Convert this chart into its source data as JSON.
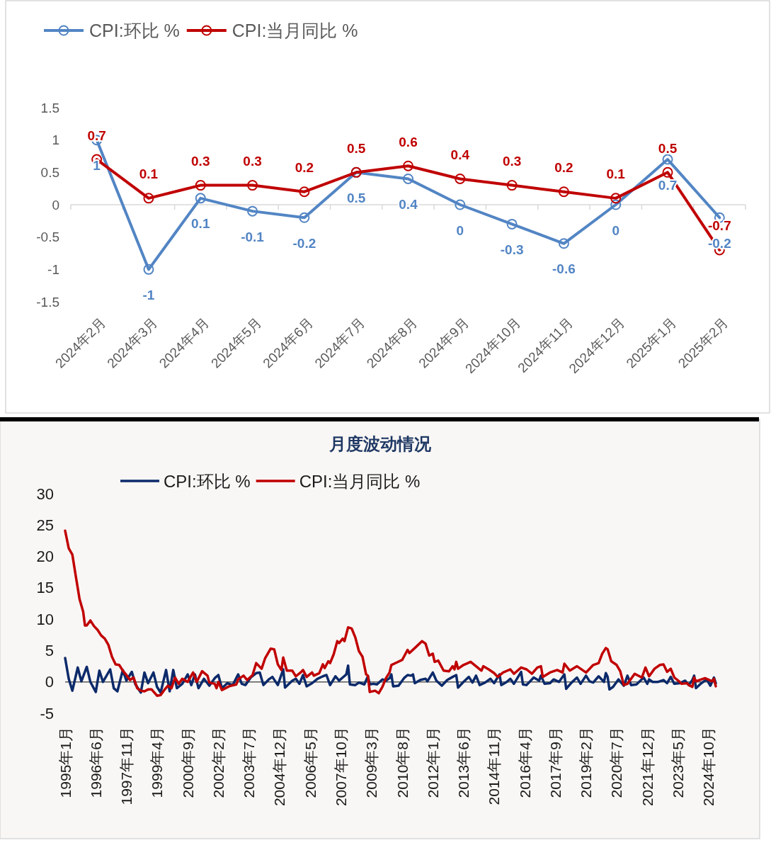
{
  "chart_data": [
    {
      "type": "line",
      "categories": [
        "2024年2月",
        "2024年3月",
        "2024年4月",
        "2024年5月",
        "2024年6月",
        "2024年7月",
        "2024年8月",
        "2024年9月",
        "2024年10月",
        "2024年11月",
        "2024年12月",
        "2025年1月",
        "2025年2月"
      ],
      "series": [
        {
          "name": "CPI:环比 %",
          "color": "#5285c4",
          "values": [
            1,
            -1,
            0.1,
            -0.1,
            -0.2,
            0.5,
            0.4,
            0,
            -0.3,
            -0.6,
            0,
            0.7,
            -0.2
          ]
        },
        {
          "name": "CPI:当月同比 %",
          "color": "#c00000",
          "values": [
            0.7,
            0.1,
            0.3,
            0.3,
            0.2,
            0.5,
            0.6,
            0.4,
            0.3,
            0.2,
            0.1,
            0.5,
            -0.7
          ]
        }
      ],
      "ylim": [
        -1.5,
        1.5
      ],
      "yticks": [
        -1.5,
        -1,
        -0.5,
        0,
        0.5,
        1,
        1.5
      ],
      "data_labels": true,
      "marker": "circle",
      "legend": "top left"
    },
    {
      "type": "line",
      "title": "月度波动情况",
      "series": [
        {
          "name": "CPI:环比 %",
          "color": "#0c2a6a",
          "x": [
            "1995-01",
            "1995-03",
            "1995-05",
            "1995-08",
            "1995-10",
            "1996-01",
            "1996-03",
            "1996-06",
            "1996-08",
            "1996-10",
            "1997-02",
            "1997-04",
            "1997-06",
            "1997-09",
            "1997-11",
            "1998-02",
            "1998-04",
            "1998-07",
            "1998-09",
            "1998-11",
            "1999-02",
            "1999-04",
            "1999-06",
            "1999-09",
            "1999-11",
            "2000-01",
            "2000-03",
            "2000-06",
            "2000-09",
            "2000-11",
            "2001-01",
            "2001-03",
            "2001-06",
            "2001-09",
            "2001-12",
            "2002-02",
            "2002-04",
            "2002-07",
            "2002-10",
            "2003-01",
            "2003-03",
            "2003-05",
            "2003-08",
            "2003-11",
            "2004-01",
            "2004-03",
            "2004-06",
            "2004-08",
            "2004-11",
            "2005-02",
            "2005-03",
            "2005-07",
            "2005-09",
            "2005-11",
            "2006-01",
            "2006-03",
            "2006-06",
            "2006-09",
            "2006-12",
            "2007-02",
            "2007-04",
            "2007-07",
            "2007-09",
            "2007-11",
            "2008-01",
            "2008-02",
            "2008-03",
            "2008-06",
            "2008-08",
            "2008-11",
            "2009-01",
            "2009-02",
            "2009-04",
            "2009-06",
            "2009-09",
            "2009-11",
            "2010-01",
            "2010-02",
            "2010-03",
            "2010-06",
            "2010-09",
            "2010-11",
            "2011-01",
            "2011-02",
            "2011-03",
            "2011-06",
            "2011-09",
            "2011-10",
            "2012-01",
            "2012-03",
            "2012-06",
            "2012-09",
            "2012-12",
            "2013-02",
            "2013-03",
            "2013-06",
            "2013-09",
            "2013-11",
            "2014-01",
            "2014-03",
            "2014-06",
            "2014-09",
            "2014-11",
            "2015-02",
            "2015-03",
            "2015-06",
            "2015-08",
            "2015-10",
            "2016-02",
            "2016-03",
            "2016-05",
            "2016-09",
            "2016-12",
            "2017-01",
            "2017-03",
            "2017-06",
            "2017-08",
            "2017-11",
            "2018-02",
            "2018-03",
            "2018-06",
            "2018-09",
            "2018-11",
            "2019-02",
            "2019-04",
            "2019-06",
            "2019-09",
            "2019-12",
            "2020-01",
            "2020-02",
            "2020-03",
            "2020-05",
            "2020-08",
            "2020-11",
            "2021-01",
            "2021-03",
            "2021-06",
            "2021-10",
            "2021-12",
            "2022-01",
            "2022-03",
            "2022-06",
            "2022-09",
            "2022-11",
            "2023-01",
            "2023-03",
            "2023-06",
            "2023-09",
            "2023-11",
            "2024-01",
            "2024-02",
            "2024-03",
            "2024-06",
            "2024-09",
            "2024-11",
            "2025-01",
            "2025-02"
          ],
          "values": [
            3.8,
            0.5,
            -1.4,
            2.3,
            0.1,
            2.4,
            0.0,
            -1.6,
            1.8,
            0.0,
            2.0,
            -1.0,
            -1.5,
            1.9,
            0.2,
            1.6,
            -0.4,
            -1.7,
            1.5,
            -0.2,
            1.5,
            -0.8,
            -1.7,
            1.9,
            -1.5,
            1.9,
            -1.0,
            -0.3,
            1.2,
            -0.5,
            1.2,
            -1.0,
            0.5,
            -0.6,
            0.6,
            1.1,
            -1.0,
            -0.2,
            -0.5,
            1.2,
            -0.3,
            -0.5,
            0.7,
            1.4,
            1.5,
            -0.5,
            0.4,
            0.8,
            -0.5,
            2.0,
            -0.9,
            0.2,
            0.5,
            -0.3,
            1.1,
            -0.7,
            -0.2,
            0.5,
            0.9,
            1.1,
            -0.5,
            0.9,
            0.2,
            0.7,
            1.2,
            2.6,
            -0.4,
            -0.5,
            -0.1,
            -0.4,
            0.9,
            -0.4,
            -0.3,
            -0.4,
            0.4,
            0.2,
            0.6,
            1.2,
            -0.7,
            -0.6,
            0.6,
            1.1,
            1.0,
            1.2,
            -0.2,
            0.3,
            0.5,
            0.1,
            1.5,
            0.2,
            -0.6,
            0.3,
            0.8,
            1.1,
            -0.9,
            0.0,
            0.8,
            -0.1,
            1.0,
            -0.5,
            -0.1,
            0.5,
            -0.2,
            1.2,
            -0.5,
            0.0,
            0.5,
            -0.3,
            1.6,
            -0.4,
            -0.5,
            0.7,
            0.2,
            1.0,
            -0.3,
            -0.2,
            0.4,
            0.0,
            1.2,
            -1.1,
            -0.1,
            0.7,
            -0.3,
            1.0,
            0.1,
            -0.1,
            0.9,
            0.0,
            1.4,
            0.8,
            -1.2,
            -0.8,
            0.4,
            -0.6,
            1.0,
            -0.5,
            -0.4,
            0.7,
            -0.3,
            0.4,
            0.0,
            0.0,
            0.3,
            -0.2,
            0.8,
            -0.3,
            -0.2,
            0.2,
            -0.5,
            0.3,
            1.0,
            -1.0,
            -0.2,
            0.4,
            -0.6,
            0.7,
            -0.2
          ]
        },
        {
          "name": "CPI:当月同比 %",
          "color": "#c00000",
          "x": [
            "1995-01",
            "1995-03",
            "1995-05",
            "1995-07",
            "1995-09",
            "1995-11",
            "1995-12",
            "1996-01",
            "1996-03",
            "1996-05",
            "1996-07",
            "1996-09",
            "1996-11",
            "1997-01",
            "1997-03",
            "1997-05",
            "1997-07",
            "1997-09",
            "1997-11",
            "1998-01",
            "1998-03",
            "1998-05",
            "1998-07",
            "1998-09",
            "1998-11",
            "1999-01",
            "1999-04",
            "1999-06",
            "1999-08",
            "1999-10",
            "1999-12",
            "2000-02",
            "2000-04",
            "2000-06",
            "2000-09",
            "2000-12",
            "2001-02",
            "2001-05",
            "2001-08",
            "2001-09",
            "2001-12",
            "2002-01",
            "2002-02",
            "2002-04",
            "2002-08",
            "2002-12",
            "2003-01",
            "2003-04",
            "2003-06",
            "2003-09",
            "2003-11",
            "2004-02",
            "2004-04",
            "2004-07",
            "2004-09",
            "2004-11",
            "2005-01",
            "2005-02",
            "2005-04",
            "2005-07",
            "2005-09",
            "2005-12",
            "2006-01",
            "2006-03",
            "2006-06",
            "2006-07",
            "2006-10",
            "2006-12",
            "2007-01",
            "2007-03",
            "2007-04",
            "2007-06",
            "2007-08",
            "2007-09",
            "2007-11",
            "2007-12",
            "2008-02",
            "2008-04",
            "2008-06",
            "2008-08",
            "2008-10",
            "2008-12",
            "2009-01",
            "2009-02",
            "2009-05",
            "2009-07",
            "2009-09",
            "2009-11",
            "2010-01",
            "2010-02",
            "2010-05",
            "2010-08",
            "2010-11",
            "2010-12",
            "2011-03",
            "2011-07",
            "2011-09",
            "2011-11",
            "2012-01",
            "2012-02",
            "2012-04",
            "2012-07",
            "2012-10",
            "2012-12",
            "2013-01",
            "2013-02",
            "2013-03",
            "2013-06",
            "2013-10",
            "2014-01",
            "2014-04",
            "2014-05",
            "2014-08",
            "2014-11",
            "2015-01",
            "2015-04",
            "2015-08",
            "2015-10",
            "2016-02",
            "2016-05",
            "2016-08",
            "2016-11",
            "2017-01",
            "2017-02",
            "2017-06",
            "2017-10",
            "2018-01",
            "2018-02",
            "2018-05",
            "2018-09",
            "2018-12",
            "2019-02",
            "2019-06",
            "2019-09",
            "2019-11",
            "2020-01",
            "2020-02",
            "2020-04",
            "2020-07",
            "2020-09",
            "2020-11",
            "2021-01",
            "2021-05",
            "2021-09",
            "2021-11",
            "2022-01",
            "2022-04",
            "2022-07",
            "2022-09",
            "2022-11",
            "2023-01",
            "2023-03",
            "2023-06",
            "2023-07",
            "2023-10",
            "2023-11",
            "2024-01",
            "2024-02",
            "2024-03",
            "2024-08",
            "2024-12",
            "2025-01",
            "2025-02"
          ],
          "values": [
            24.1,
            21.3,
            20.3,
            16.7,
            13.2,
            11.2,
            9.0,
            9.0,
            9.8,
            8.9,
            8.3,
            7.4,
            6.9,
            5.9,
            4.0,
            2.8,
            2.7,
            1.8,
            1.1,
            0.3,
            0.7,
            -1.0,
            -1.4,
            -1.5,
            -1.2,
            -1.2,
            -2.2,
            -2.1,
            -1.3,
            -0.6,
            -1.0,
            0.7,
            -0.3,
            0.5,
            0.0,
            1.5,
            0.0,
            1.7,
            1.0,
            -0.1,
            -0.3,
            -1.0,
            0.0,
            -1.3,
            -0.7,
            -0.4,
            0.4,
            1.0,
            0.3,
            1.1,
            3.0,
            2.1,
            3.8,
            5.3,
            5.2,
            2.8,
            1.9,
            3.9,
            1.8,
            1.8,
            0.9,
            1.6,
            1.9,
            0.8,
            1.5,
            1.0,
            1.4,
            2.8,
            2.2,
            3.3,
            3.0,
            4.4,
            6.5,
            6.2,
            6.9,
            6.5,
            8.7,
            8.5,
            7.1,
            4.9,
            4.0,
            1.2,
            1.0,
            -1.6,
            -1.4,
            -1.8,
            -0.8,
            0.6,
            1.5,
            2.7,
            3.1,
            3.5,
            5.1,
            4.6,
            5.4,
            6.5,
            6.1,
            4.2,
            4.5,
            3.2,
            3.4,
            1.8,
            1.7,
            2.5,
            2.0,
            3.2,
            2.1,
            2.7,
            3.2,
            2.5,
            1.8,
            2.5,
            2.0,
            1.4,
            0.8,
            1.5,
            2.0,
            1.3,
            2.3,
            2.0,
            1.3,
            2.3,
            2.5,
            0.8,
            1.5,
            1.9,
            1.5,
            2.9,
            1.8,
            2.5,
            1.9,
            1.5,
            2.7,
            3.0,
            4.5,
            5.4,
            5.2,
            3.3,
            2.7,
            1.7,
            -0.5,
            -0.3,
            1.3,
            0.7,
            2.3,
            0.9,
            2.1,
            2.7,
            2.8,
            1.6,
            2.1,
            0.7,
            0.0,
            -0.3,
            -0.2,
            -0.5,
            -0.8,
            0.7,
            0.1,
            0.6,
            0.1,
            0.5,
            -0.7
          ]
        }
      ],
      "xlim": [
        "1995-01",
        "2025-02"
      ],
      "xticks": [
        {
          "value": "1995-01",
          "label": "1995年1月"
        },
        {
          "value": "1996-06",
          "label": "1996年6月"
        },
        {
          "value": "1997-11",
          "label": "1997年11月"
        },
        {
          "value": "1999-04",
          "label": "1999年4月"
        },
        {
          "value": "2000-09",
          "label": "2000年9月"
        },
        {
          "value": "2002-02",
          "label": "2002年2月"
        },
        {
          "value": "2003-07",
          "label": "2003年7月"
        },
        {
          "value": "2004-12",
          "label": "2004年12月"
        },
        {
          "value": "2006-05",
          "label": "2006年5月"
        },
        {
          "value": "2007-10",
          "label": "2007年10月"
        },
        {
          "value": "2009-03",
          "label": "2009年3月"
        },
        {
          "value": "2010-08",
          "label": "2010年8月"
        },
        {
          "value": "2012-01",
          "label": "2012年1月"
        },
        {
          "value": "2013-06",
          "label": "2013年6月"
        },
        {
          "value": "2014-11",
          "label": "2014年11月"
        },
        {
          "value": "2016-04",
          "label": "2016年4月"
        },
        {
          "value": "2017-09",
          "label": "2017年9月"
        },
        {
          "value": "2019-02",
          "label": "2019年2月"
        },
        {
          "value": "2020-07",
          "label": "2020年7月"
        },
        {
          "value": "2021-12",
          "label": "2021年12月"
        },
        {
          "value": "2023-05",
          "label": "2023年5月"
        },
        {
          "value": "2024-10",
          "label": "2024年10月"
        }
      ],
      "ylim": [
        -5,
        30
      ],
      "yticks": [
        -5,
        0,
        5,
        10,
        15,
        20,
        25,
        30
      ],
      "legend": "top left"
    }
  ]
}
